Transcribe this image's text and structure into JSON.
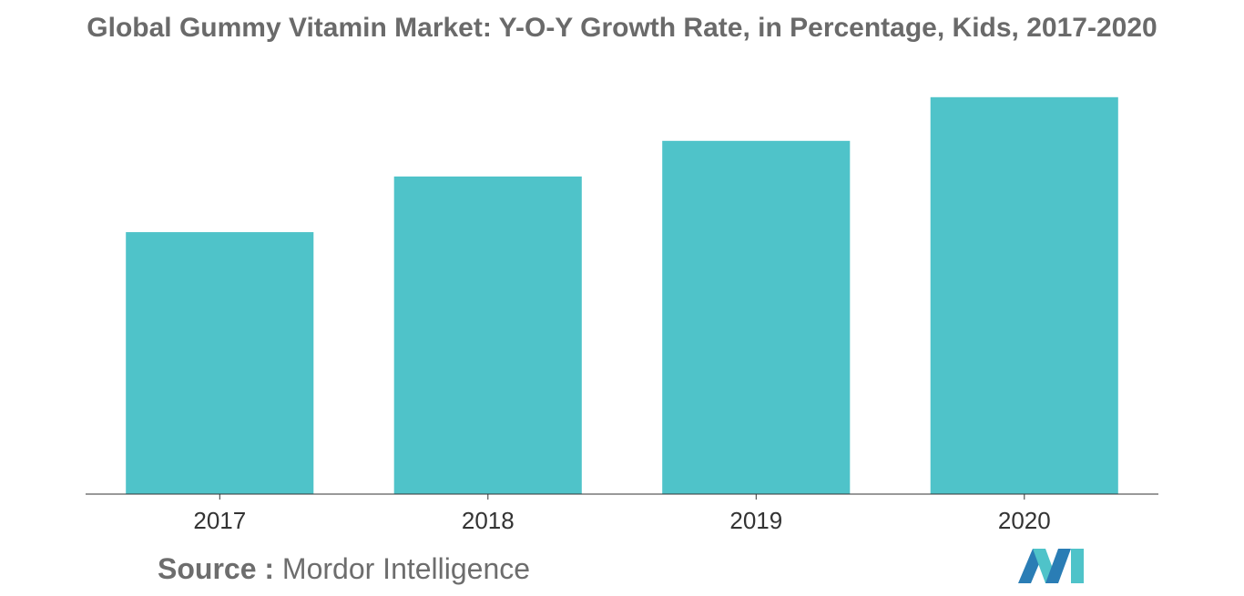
{
  "chart_data": {
    "type": "bar",
    "title": "Global Gummy Vitamin Market: Y-O-Y Growth Rate, in Percentage, Kids, 2017-2020",
    "categories": [
      "2017",
      "2018",
      "2019",
      "2020"
    ],
    "values": [
      6.6,
      8.0,
      8.9,
      10.0
    ],
    "xlabel": "",
    "ylabel": "",
    "ylim": [
      0,
      10.5
    ],
    "grid": false,
    "legend": "none",
    "colors": {
      "bar": "#4fc3c9",
      "axis": "#333333"
    }
  },
  "footer": {
    "source_label": "Source :",
    "source_text": "Mordor Intelligence",
    "logo_icon": "mordor-intelligence-logo-icon"
  }
}
